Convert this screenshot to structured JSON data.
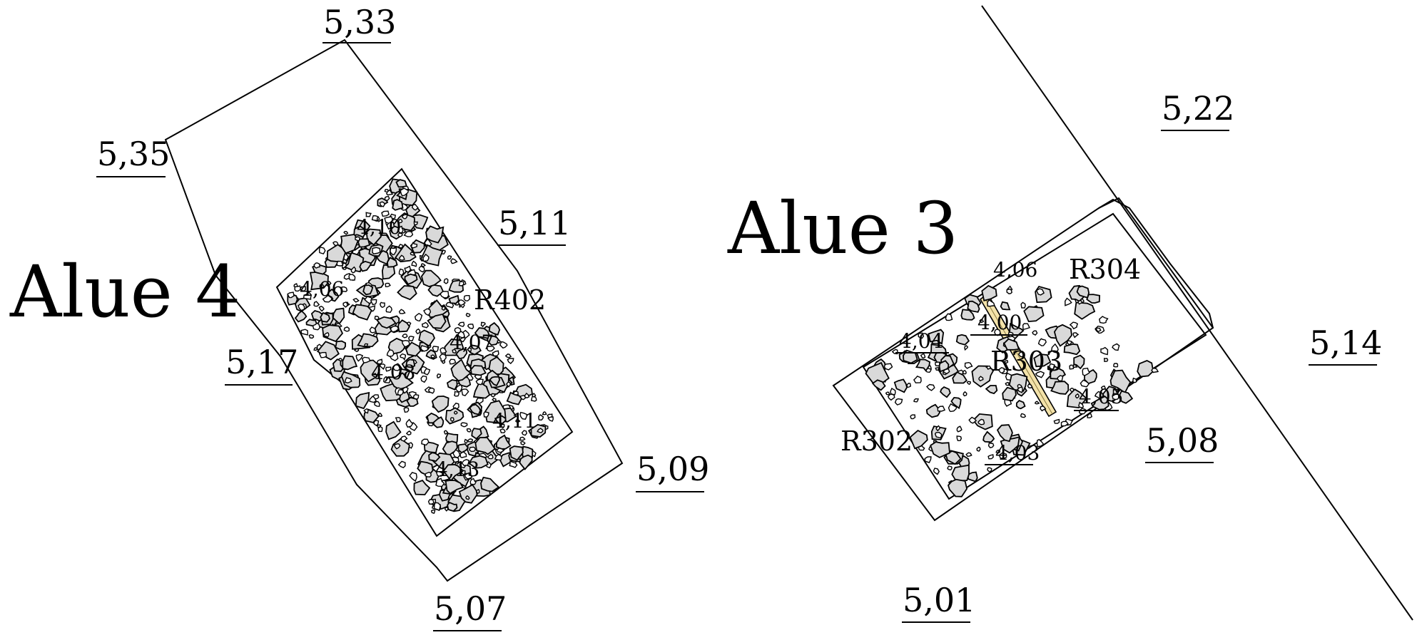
{
  "areas": {
    "area4": {
      "title": "Alue 4"
    },
    "area3": {
      "title": "Alue 3"
    }
  },
  "elevations": {
    "e533": "5,33",
    "e535": "5,35",
    "e511": "5,11",
    "e517": "5,17",
    "e509": "5,09",
    "e507": "5,07",
    "e522": "5,22",
    "e514": "5,14",
    "e508": "5,08",
    "e501": "5,01"
  },
  "small_elevations": {
    "s410": "4,10",
    "s406": "4,06",
    "s407": "4,07",
    "s408": "4,08",
    "s411": "4,11",
    "s413": "4,13",
    "s406b": "4,06",
    "s400": "4,00",
    "s404": "4,04",
    "s405": "4,05",
    "s403": "4,03"
  },
  "features": {
    "r402": "R402",
    "r304": "R304",
    "r303": "R303",
    "r302": "R302"
  },
  "colors": {
    "stone_fill": "#d9d9d9",
    "wood_fill": "#f3e2a9",
    "line": "#000000"
  }
}
